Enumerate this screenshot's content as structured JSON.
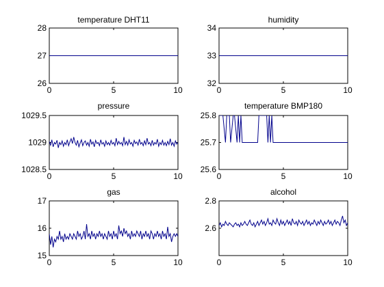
{
  "figure": {
    "background": "#ffffff",
    "line_color": "#00008b"
  },
  "chart_data": [
    {
      "type": "line",
      "title": "temperature DHT11",
      "xlim": [
        0,
        10
      ],
      "ylim": [
        26,
        28
      ],
      "xticks": [
        0,
        5,
        10
      ],
      "yticks": [
        26,
        27,
        28
      ],
      "xtick_labels": [
        "0",
        "5",
        "10"
      ],
      "ytick_labels": [
        "26",
        "27",
        "28"
      ],
      "series": [
        {
          "x": [
            0,
            10
          ],
          "y": [
            27,
            27
          ]
        }
      ]
    },
    {
      "type": "line",
      "title": "humidity",
      "xlim": [
        0,
        10
      ],
      "ylim": [
        32,
        34
      ],
      "xticks": [
        0,
        5,
        10
      ],
      "yticks": [
        32,
        33,
        34
      ],
      "xtick_labels": [
        "0",
        "5",
        "10"
      ],
      "ytick_labels": [
        "32",
        "33",
        "34"
      ],
      "series": [
        {
          "x": [
            0,
            10
          ],
          "y": [
            33,
            33
          ]
        }
      ]
    },
    {
      "type": "line",
      "title": "pressure",
      "xlim": [
        0,
        10
      ],
      "ylim": [
        1028.5,
        1029.5
      ],
      "xticks": [
        0,
        5,
        10
      ],
      "yticks": [
        1028.5,
        1029,
        1029.5
      ],
      "xtick_labels": [
        "0",
        "5",
        "10"
      ],
      "ytick_labels": [
        "1028.5",
        "1029",
        "1029.5"
      ],
      "series": [
        {
          "x": [
            0,
            0.1,
            0.2,
            0.3,
            0.4,
            0.5,
            0.6,
            0.7,
            0.8,
            0.9,
            1,
            1.1,
            1.2,
            1.3,
            1.4,
            1.5,
            1.6,
            1.7,
            1.8,
            1.9,
            2,
            2.1,
            2.2,
            2.3,
            2.4,
            2.5,
            2.6,
            2.7,
            2.8,
            2.9,
            3,
            3.1,
            3.2,
            3.3,
            3.4,
            3.5,
            3.6,
            3.7,
            3.8,
            3.9,
            4,
            4.1,
            4.2,
            4.3,
            4.4,
            4.5,
            4.6,
            4.7,
            4.8,
            4.9,
            5,
            5.1,
            5.2,
            5.3,
            5.4,
            5.5,
            5.6,
            5.7,
            5.8,
            5.9,
            6,
            6.1,
            6.2,
            6.3,
            6.4,
            6.5,
            6.6,
            6.7,
            6.8,
            6.9,
            7,
            7.1,
            7.2,
            7.3,
            7.4,
            7.5,
            7.6,
            7.7,
            7.8,
            7.9,
            8,
            8.1,
            8.2,
            8.3,
            8.4,
            8.5,
            8.6,
            8.7,
            8.8,
            8.9,
            9,
            9.1,
            9.2,
            9.3,
            9.4,
            9.5,
            9.6,
            9.7,
            9.8,
            9.9,
            10
          ],
          "y": [
            1029.02,
            1028.95,
            1029.05,
            1028.92,
            1029.0,
            1028.97,
            1029.04,
            1028.9,
            1029.0,
            1028.96,
            1029.03,
            1028.93,
            1029.0,
            1028.96,
            1029.05,
            1028.94,
            1029.01,
            1029.07,
            1028.98,
            1029.1,
            1029.0,
            1028.95,
            1029.04,
            1028.92,
            1028.99,
            1029.05,
            1028.94,
            1029.0,
            1029.03,
            1028.95,
            1029.0,
            1028.93,
            1029.06,
            1028.97,
            1029.01,
            1028.92,
            1029.04,
            1028.98,
            1029.0,
            1028.94,
            1029.05,
            1028.97,
            1029.0,
            1028.93,
            1029.03,
            1028.96,
            1029.0,
            1028.95,
            1029.04,
            1028.97,
            1029.0,
            1028.94,
            1029.08,
            1028.96,
            1029.02,
            1028.97,
            1029.0,
            1028.94,
            1029.1,
            1028.96,
            1029.02,
            1028.95,
            1029.05,
            1028.97,
            1029.0,
            1028.93,
            1029.04,
            1028.98,
            1029.01,
            1028.95,
            1029.06,
            1028.97,
            1029.0,
            1028.94,
            1029.03,
            1028.96,
            1029.08,
            1028.97,
            1029.0,
            1028.94,
            1029.04,
            1028.95,
            1029.0,
            1028.97,
            1029.06,
            1028.93,
            1029.0,
            1028.96,
            1029.04,
            1028.95,
            1029.0,
            1028.94,
            1029.02,
            1028.96,
            1029.07,
            1028.95,
            1029.0,
            1028.93,
            1029.03,
            1028.97,
            1029.0
          ]
        }
      ]
    },
    {
      "type": "line",
      "title": "temperature BMP180",
      "xlim": [
        0,
        10
      ],
      "ylim": [
        25.6,
        25.8
      ],
      "xticks": [
        0,
        5,
        10
      ],
      "yticks": [
        25.6,
        25.7,
        25.8
      ],
      "xtick_labels": [
        "0",
        "5",
        "10"
      ],
      "ytick_labels": [
        "25.6",
        "25.7",
        "25.8"
      ],
      "series": [
        {
          "x": [
            0,
            0.3,
            0.5,
            0.6,
            0.8,
            0.9,
            1.1,
            1.2,
            1.4,
            1.5,
            1.6,
            1.7,
            1.8,
            1.9,
            2.0,
            2.1,
            2.2,
            2.3,
            2.4,
            2.6,
            2.8,
            2.9,
            3.0,
            3.1,
            3.2,
            3.3,
            3.5,
            3.6,
            3.7,
            3.8,
            3.9,
            4.0,
            4.1,
            4.2,
            4.3,
            4.4,
            10
          ],
          "y": [
            25.8,
            25.8,
            25.7,
            25.8,
            25.8,
            25.7,
            25.8,
            25.8,
            25.7,
            25.8,
            25.7,
            25.8,
            25.7,
            25.7,
            25.7,
            25.7,
            25.7,
            25.7,
            25.7,
            25.7,
            25.7,
            25.7,
            25.7,
            25.8,
            25.8,
            25.8,
            25.8,
            25.8,
            25.8,
            25.7,
            25.8,
            25.7,
            25.8,
            25.7,
            25.7,
            25.7,
            25.7
          ]
        }
      ]
    },
    {
      "type": "line",
      "title": "gas",
      "xlim": [
        0,
        10
      ],
      "ylim": [
        15,
        17
      ],
      "xticks": [
        0,
        5,
        10
      ],
      "yticks": [
        15,
        16,
        17
      ],
      "xtick_labels": [
        "0",
        "5",
        "10"
      ],
      "ytick_labels": [
        "15",
        "16",
        "17"
      ],
      "series": [
        {
          "x": [
            0,
            0.1,
            0.2,
            0.3,
            0.4,
            0.5,
            0.6,
            0.7,
            0.8,
            0.9,
            1,
            1.1,
            1.2,
            1.3,
            1.4,
            1.5,
            1.6,
            1.7,
            1.8,
            1.9,
            2,
            2.1,
            2.2,
            2.3,
            2.4,
            2.5,
            2.6,
            2.7,
            2.8,
            2.9,
            3,
            3.1,
            3.2,
            3.3,
            3.4,
            3.5,
            3.6,
            3.7,
            3.8,
            3.9,
            4,
            4.1,
            4.2,
            4.3,
            4.4,
            4.5,
            4.6,
            4.7,
            4.8,
            4.9,
            5,
            5.1,
            5.2,
            5.3,
            5.4,
            5.5,
            5.6,
            5.7,
            5.8,
            5.9,
            6,
            6.1,
            6.2,
            6.3,
            6.4,
            6.5,
            6.6,
            6.7,
            6.8,
            6.9,
            7,
            7.1,
            7.2,
            7.3,
            7.4,
            7.5,
            7.6,
            7.7,
            7.8,
            7.9,
            8,
            8.1,
            8.2,
            8.3,
            8.4,
            8.5,
            8.6,
            8.7,
            8.8,
            8.9,
            9,
            9.1,
            9.2,
            9.3,
            9.4,
            9.5,
            9.6,
            9.7,
            9.8,
            9.9,
            10
          ],
          "y": [
            15.8,
            15.4,
            15.7,
            15.3,
            15.6,
            15.5,
            15.7,
            15.6,
            15.9,
            15.6,
            15.7,
            15.5,
            15.8,
            15.6,
            15.7,
            15.6,
            15.8,
            15.7,
            15.6,
            15.8,
            15.7,
            15.6,
            15.9,
            15.7,
            15.8,
            15.6,
            15.7,
            15.9,
            15.6,
            16.15,
            15.7,
            15.8,
            15.6,
            15.9,
            15.7,
            15.8,
            15.6,
            15.8,
            15.7,
            15.9,
            15.7,
            15.8,
            15.6,
            15.8,
            15.7,
            15.6,
            15.9,
            15.7,
            15.8,
            15.6,
            15.9,
            15.7,
            15.8,
            15.6,
            16.1,
            15.8,
            15.9,
            15.7,
            16.0,
            15.8,
            15.9,
            15.7,
            15.8,
            15.6,
            15.9,
            15.7,
            15.8,
            15.7,
            15.9,
            15.8,
            15.7,
            15.9,
            15.6,
            15.8,
            15.7,
            15.9,
            15.7,
            15.8,
            15.6,
            15.9,
            15.8,
            15.6,
            15.8,
            15.7,
            15.9,
            15.7,
            15.8,
            15.6,
            15.9,
            15.7,
            15.8,
            15.6,
            16.05,
            15.7,
            15.8,
            15.5,
            15.7,
            15.8,
            15.7,
            15.8,
            15.7
          ]
        }
      ]
    },
    {
      "type": "line",
      "title": "alcohol",
      "xlim": [
        0,
        10
      ],
      "ylim": [
        2.4,
        2.8
      ],
      "xticks": [
        0,
        5,
        10
      ],
      "yticks": [
        2.6,
        2.8
      ],
      "xtick_labels": [
        "0",
        "5",
        "10"
      ],
      "ytick_labels": [
        "2.6",
        "2.8"
      ],
      "series": [
        {
          "x": [
            0,
            0.1,
            0.2,
            0.3,
            0.4,
            0.5,
            0.6,
            0.7,
            0.8,
            0.9,
            1,
            1.1,
            1.2,
            1.3,
            1.4,
            1.5,
            1.6,
            1.7,
            1.8,
            1.9,
            2,
            2.1,
            2.2,
            2.3,
            2.4,
            2.5,
            2.6,
            2.7,
            2.8,
            2.9,
            3,
            3.1,
            3.2,
            3.3,
            3.4,
            3.5,
            3.6,
            3.7,
            3.8,
            3.9,
            4,
            4.1,
            4.2,
            4.3,
            4.4,
            4.5,
            4.6,
            4.7,
            4.8,
            4.9,
            5,
            5.1,
            5.2,
            5.3,
            5.4,
            5.5,
            5.6,
            5.7,
            5.8,
            5.9,
            6,
            6.1,
            6.2,
            6.3,
            6.4,
            6.5,
            6.6,
            6.7,
            6.8,
            6.9,
            7,
            7.1,
            7.2,
            7.3,
            7.4,
            7.5,
            7.6,
            7.7,
            7.8,
            7.9,
            8,
            8.1,
            8.2,
            8.3,
            8.4,
            8.5,
            8.6,
            8.7,
            8.8,
            8.9,
            9,
            9.1,
            9.2,
            9.3,
            9.4,
            9.5,
            9.6,
            9.7,
            9.8,
            9.9,
            10
          ],
          "y": [
            2.62,
            2.64,
            2.61,
            2.63,
            2.62,
            2.65,
            2.63,
            2.62,
            2.64,
            2.63,
            2.62,
            2.61,
            2.63,
            2.64,
            2.62,
            2.63,
            2.61,
            2.64,
            2.62,
            2.63,
            2.65,
            2.63,
            2.62,
            2.64,
            2.66,
            2.63,
            2.62,
            2.64,
            2.61,
            2.63,
            2.65,
            2.62,
            2.64,
            2.66,
            2.63,
            2.65,
            2.62,
            2.64,
            2.67,
            2.63,
            2.64,
            2.62,
            2.66,
            2.64,
            2.63,
            2.67,
            2.64,
            2.62,
            2.66,
            2.63,
            2.65,
            2.62,
            2.64,
            2.66,
            2.63,
            2.65,
            2.62,
            2.67,
            2.64,
            2.63,
            2.65,
            2.62,
            2.66,
            2.64,
            2.63,
            2.65,
            2.62,
            2.64,
            2.66,
            2.63,
            2.65,
            2.62,
            2.64,
            2.63,
            2.66,
            2.64,
            2.62,
            2.65,
            2.63,
            2.66,
            2.64,
            2.62,
            2.65,
            2.63,
            2.64,
            2.66,
            2.63,
            2.65,
            2.62,
            2.64,
            2.66,
            2.63,
            2.65,
            2.64,
            2.62,
            2.66,
            2.69,
            2.64,
            2.66,
            2.62,
            2.64
          ]
        }
      ]
    }
  ]
}
